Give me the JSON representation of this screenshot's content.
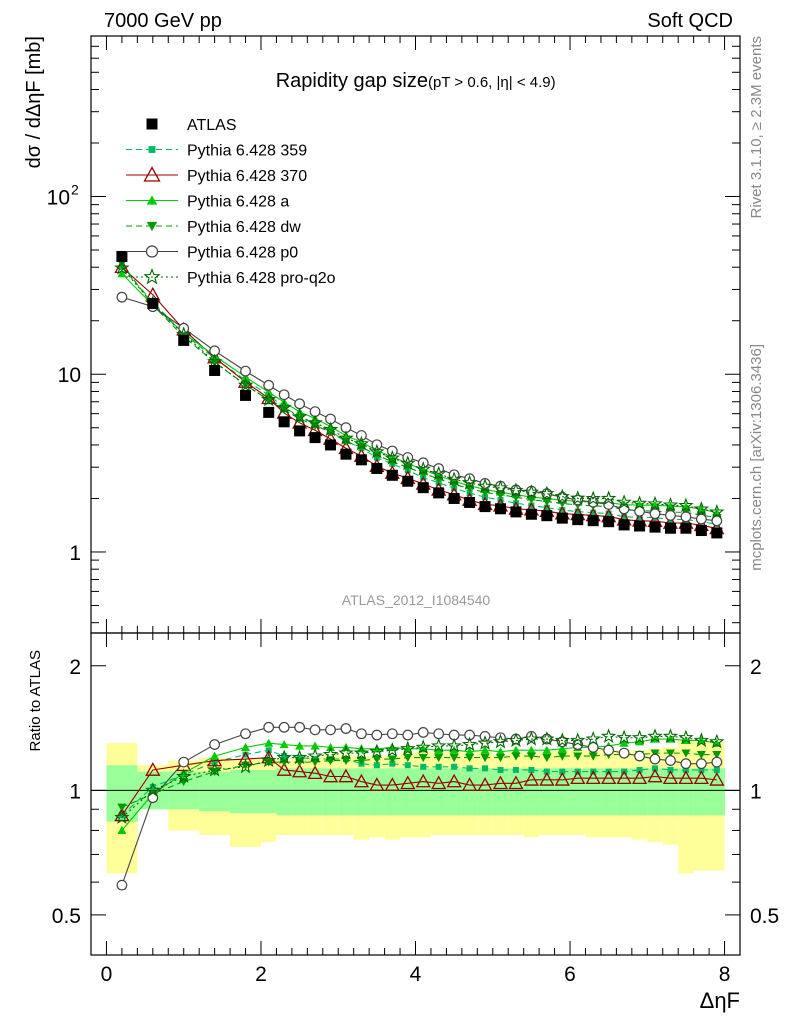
{
  "header": {
    "left": "7000 GeV pp",
    "right": "Soft QCD"
  },
  "side_labels": {
    "rivet": "Rivet 3.1.10, ≥ 2.3M events",
    "mcplots": "mcplots.cern.ch [arXiv:1306.3436]"
  },
  "chart_data": {
    "type": "scatter",
    "title": "Rapidity gap size",
    "subtitle": "(pT > 0.6, |η| < 4.9)",
    "watermark": "ATLAS_2012_I1084540",
    "xlabel": "ΔηF",
    "ylabel": "dσ / dΔηF [mb]",
    "ratio_ylabel": "Ratio to ATLAS",
    "xlim": [
      -0.2,
      8.2
    ],
    "ylim": [
      0.35,
      800
    ],
    "yscale": "log",
    "ratio_ylim": [
      0.4,
      2.4
    ],
    "xticks": [
      0,
      2,
      4,
      6,
      8
    ],
    "yticks": [
      {
        "v": 1,
        "label": "1"
      },
      {
        "v": 10,
        "label": "10"
      },
      {
        "v": 100,
        "label": "10",
        "sup": "2"
      }
    ],
    "ratio_yticks": [
      {
        "v": 0.5,
        "label": "0.5"
      },
      {
        "v": 1,
        "label": "1"
      },
      {
        "v": 2,
        "label": "2"
      }
    ],
    "legend_position": "top-left",
    "x": [
      0.2,
      0.6,
      1.0,
      1.4,
      1.8,
      2.1,
      2.3,
      2.5,
      2.7,
      2.9,
      3.1,
      3.3,
      3.5,
      3.7,
      3.9,
      4.1,
      4.3,
      4.5,
      4.7,
      4.9,
      5.1,
      5.3,
      5.5,
      5.7,
      5.9,
      6.1,
      6.3,
      6.5,
      6.7,
      6.9,
      7.1,
      7.3,
      7.5,
      7.7,
      7.9
    ],
    "band_edges": [
      0.0,
      0.4,
      0.8,
      1.2,
      1.6,
      2.0,
      2.2,
      2.4,
      2.6,
      2.8,
      3.0,
      3.2,
      3.4,
      3.6,
      3.8,
      4.0,
      4.2,
      4.4,
      4.6,
      4.8,
      5.0,
      5.2,
      5.4,
      5.6,
      5.8,
      6.0,
      6.2,
      6.4,
      6.6,
      6.8,
      7.0,
      7.2,
      7.4,
      7.6,
      7.8,
      8.0
    ],
    "band_stat_lo": [
      0.84,
      0.9,
      0.9,
      0.89,
      0.88,
      0.88,
      0.87,
      0.87,
      0.87,
      0.87,
      0.87,
      0.87,
      0.87,
      0.87,
      0.87,
      0.87,
      0.87,
      0.87,
      0.87,
      0.87,
      0.87,
      0.87,
      0.87,
      0.87,
      0.87,
      0.87,
      0.87,
      0.87,
      0.87,
      0.87,
      0.87,
      0.87,
      0.87,
      0.87,
      0.87
    ],
    "band_stat_hi": [
      1.15,
      1.11,
      1.11,
      1.11,
      1.12,
      1.12,
      1.13,
      1.13,
      1.13,
      1.13,
      1.13,
      1.13,
      1.13,
      1.13,
      1.13,
      1.13,
      1.13,
      1.13,
      1.13,
      1.13,
      1.13,
      1.13,
      1.13,
      1.13,
      1.13,
      1.13,
      1.13,
      1.13,
      1.13,
      1.13,
      1.13,
      1.13,
      1.13,
      1.13,
      1.13
    ],
    "band_tot_lo": [
      0.63,
      0.93,
      0.8,
      0.78,
      0.73,
      0.75,
      0.78,
      0.78,
      0.78,
      0.78,
      0.78,
      0.76,
      0.77,
      0.76,
      0.77,
      0.77,
      0.78,
      0.78,
      0.78,
      0.78,
      0.78,
      0.78,
      0.77,
      0.78,
      0.78,
      0.78,
      0.77,
      0.77,
      0.77,
      0.76,
      0.75,
      0.74,
      0.63,
      0.64,
      0.64
    ],
    "band_tot_hi": [
      1.3,
      1.15,
      1.18,
      1.2,
      1.19,
      1.19,
      1.18,
      1.2,
      1.2,
      1.22,
      1.22,
      1.21,
      1.21,
      1.21,
      1.23,
      1.24,
      1.23,
      1.24,
      1.23,
      1.24,
      1.22,
      1.24,
      1.23,
      1.24,
      1.25,
      1.25,
      1.25,
      1.25,
      1.25,
      1.25,
      1.26,
      1.27,
      1.32,
      1.31,
      1.31
    ],
    "series": [
      {
        "name": "ATLAS",
        "color": "#000000",
        "marker": "square-filled",
        "line": "none",
        "values": [
          46,
          25,
          15.5,
          10.5,
          7.6,
          6.1,
          5.4,
          4.8,
          4.4,
          4.0,
          3.55,
          3.3,
          2.95,
          2.7,
          2.5,
          2.3,
          2.15,
          2.0,
          1.9,
          1.8,
          1.75,
          1.68,
          1.63,
          1.6,
          1.55,
          1.52,
          1.5,
          1.48,
          1.42,
          1.4,
          1.38,
          1.36,
          1.36,
          1.32,
          1.28
        ]
      },
      {
        "name": "Pythia 6.428 359",
        "color": "#00bb66",
        "marker": "square-small",
        "line": "dashed",
        "ratio": [
          0.87,
          1.02,
          1.09,
          1.17,
          1.22,
          1.25,
          1.21,
          1.2,
          1.19,
          1.19,
          1.19,
          1.16,
          1.15,
          1.16,
          1.15,
          1.14,
          1.14,
          1.14,
          1.13,
          1.13,
          1.12,
          1.12,
          1.12,
          1.11,
          1.11,
          1.11,
          1.11,
          1.11,
          1.11,
          1.12,
          1.13,
          1.12,
          1.12,
          1.12,
          1.12
        ]
      },
      {
        "name": "Pythia 6.428 370",
        "color": "#990000",
        "marker": "triangle-open",
        "line": "solid",
        "ratio": [
          0.87,
          1.12,
          1.15,
          1.18,
          1.19,
          1.2,
          1.12,
          1.11,
          1.1,
          1.08,
          1.08,
          1.05,
          1.03,
          1.03,
          1.04,
          1.05,
          1.04,
          1.05,
          1.03,
          1.03,
          1.04,
          1.04,
          1.06,
          1.06,
          1.06,
          1.07,
          1.07,
          1.07,
          1.07,
          1.07,
          1.08,
          1.07,
          1.07,
          1.07,
          1.06
        ]
      },
      {
        "name": "Pythia 6.428 a",
        "color": "#00cc00",
        "marker": "triangle-filled",
        "line": "solid",
        "ratio": [
          0.8,
          0.98,
          1.1,
          1.21,
          1.27,
          1.3,
          1.29,
          1.28,
          1.28,
          1.27,
          1.27,
          1.26,
          1.26,
          1.27,
          1.26,
          1.26,
          1.25,
          1.25,
          1.24,
          1.25,
          1.24,
          1.25,
          1.25,
          1.25,
          1.26,
          1.27,
          1.27,
          1.28,
          1.3,
          1.31,
          1.33,
          1.33,
          1.32,
          1.32,
          1.3
        ]
      },
      {
        "name": "Pythia 6.428 dw",
        "color": "#009900",
        "marker": "triangle-down-filled",
        "line": "dashed",
        "ratio": [
          0.91,
          0.98,
          1.05,
          1.11,
          1.15,
          1.17,
          1.17,
          1.17,
          1.17,
          1.18,
          1.18,
          1.18,
          1.19,
          1.19,
          1.2,
          1.2,
          1.2,
          1.2,
          1.2,
          1.2,
          1.2,
          1.21,
          1.21,
          1.2,
          1.21,
          1.21,
          1.21,
          1.22,
          1.22,
          1.22,
          1.23,
          1.23,
          1.23,
          1.22,
          1.22
        ]
      },
      {
        "name": "Pythia 6.428 p0",
        "color": "#444444",
        "marker": "circle-open",
        "line": "solid",
        "ratio": [
          0.59,
          0.96,
          1.17,
          1.29,
          1.37,
          1.42,
          1.42,
          1.42,
          1.4,
          1.4,
          1.41,
          1.37,
          1.36,
          1.37,
          1.36,
          1.38,
          1.37,
          1.36,
          1.36,
          1.35,
          1.34,
          1.33,
          1.35,
          1.33,
          1.31,
          1.29,
          1.27,
          1.25,
          1.23,
          1.21,
          1.19,
          1.18,
          1.16,
          1.16,
          1.17
        ]
      },
      {
        "name": "Pythia 6.428 pro-q2o",
        "color": "#006600",
        "marker": "star-open",
        "line": "dotted",
        "ratio": [
          0.86,
          1.0,
          1.08,
          1.12,
          1.14,
          1.18,
          1.2,
          1.2,
          1.21,
          1.22,
          1.23,
          1.23,
          1.24,
          1.25,
          1.26,
          1.27,
          1.28,
          1.28,
          1.29,
          1.3,
          1.31,
          1.32,
          1.33,
          1.33,
          1.32,
          1.32,
          1.33,
          1.35,
          1.34,
          1.34,
          1.35,
          1.35,
          1.34,
          1.32,
          1.31
        ]
      }
    ]
  }
}
